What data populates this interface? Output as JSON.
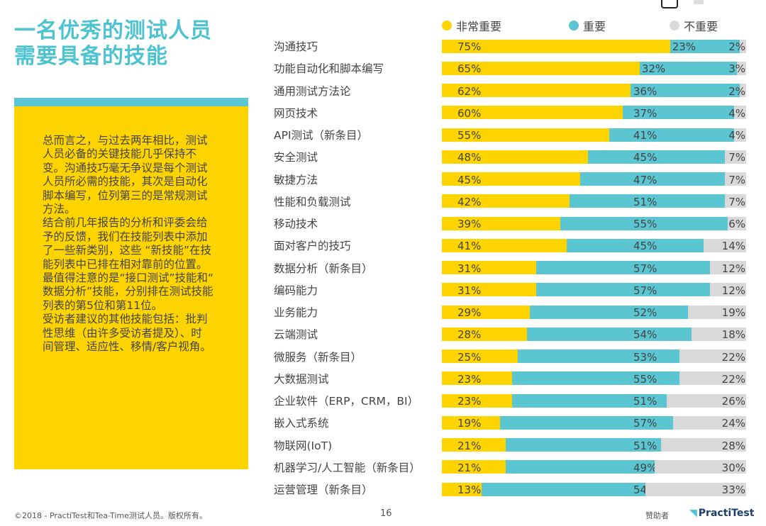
{
  "title": [
    "一名优秀的测试人员",
    "需要具备的技能"
  ],
  "paragraph_lines": [
    "总而言之，与过去两年相比，测试",
    "人员必备的关键技能几乎保持不",
    "变。沟通技巧毫无争议是每个测试",
    "人员所必需的技能，其次是自动化",
    "脚本编写，位列第三的是常规测试",
    "方法。",
    "结合前几年报告的分析和评委会给",
    "予的反馈，我们在技能列表中添加",
    "了一些新类别，这些 “新技能”在技",
    "能列表中已排在相对靠前的位置。",
    "最值得注意的是“接口测试”技能和“",
    "数据分析”技能，分别排在测试技能",
    "列表的第5位和第11位。",
    "受访者建议的其他技能包括：批判",
    "性思维（由许多受访者提及）、时",
    "间管理、适应性、移情/客户视角。"
  ],
  "colors": {
    "title": "#4cc3cf",
    "very_important": "#fdd400",
    "important": "#5bc5d1",
    "not_important": "#d9d9d9",
    "box": "#fdd400"
  },
  "chart_data": {
    "type": "bar",
    "orientation": "horizontal",
    "stacked": true,
    "legend_position": "top",
    "categories": [
      "沟通技巧",
      "功能自动化和脚本编写",
      "通用测试方法论",
      "网页技术",
      "API测试（新条目）",
      "安全测试",
      "敏捷方法",
      "性能和负载测试",
      "移动技术",
      "面对客户的技巧",
      "数据分析（新条目）",
      "编码能力",
      "业务能力",
      "云端测试",
      "微服务（新条目）",
      "大数据测试",
      "企业软件（ERP，CRM，BI）",
      "嵌入式系统",
      "物联网(IoT)",
      "机器学习/人工智能（新条目）",
      "运营管理（新条目）"
    ],
    "series": [
      {
        "name": "非常重要",
        "values": [
          75,
          65,
          62,
          60,
          55,
          48,
          45,
          42,
          39,
          41,
          31,
          31,
          29,
          28,
          25,
          23,
          23,
          19,
          21,
          21,
          13
        ]
      },
      {
        "name": "重要",
        "values": [
          23,
          32,
          36,
          37,
          41,
          45,
          47,
          51,
          55,
          45,
          57,
          57,
          52,
          54,
          53,
          55,
          51,
          57,
          51,
          49,
          54
        ]
      },
      {
        "name": "不重要",
        "values": [
          2,
          3,
          2,
          4,
          4,
          7,
          7,
          7,
          6,
          14,
          12,
          12,
          19,
          18,
          22,
          22,
          26,
          24,
          28,
          30,
          33
        ]
      }
    ],
    "unit": "%"
  },
  "footer": {
    "copyright": "©2018 - PractiTest和Tea-Time测试人员。版权所有。",
    "page": "16",
    "sponsor": "赞助者",
    "logo": "PractiTest"
  }
}
